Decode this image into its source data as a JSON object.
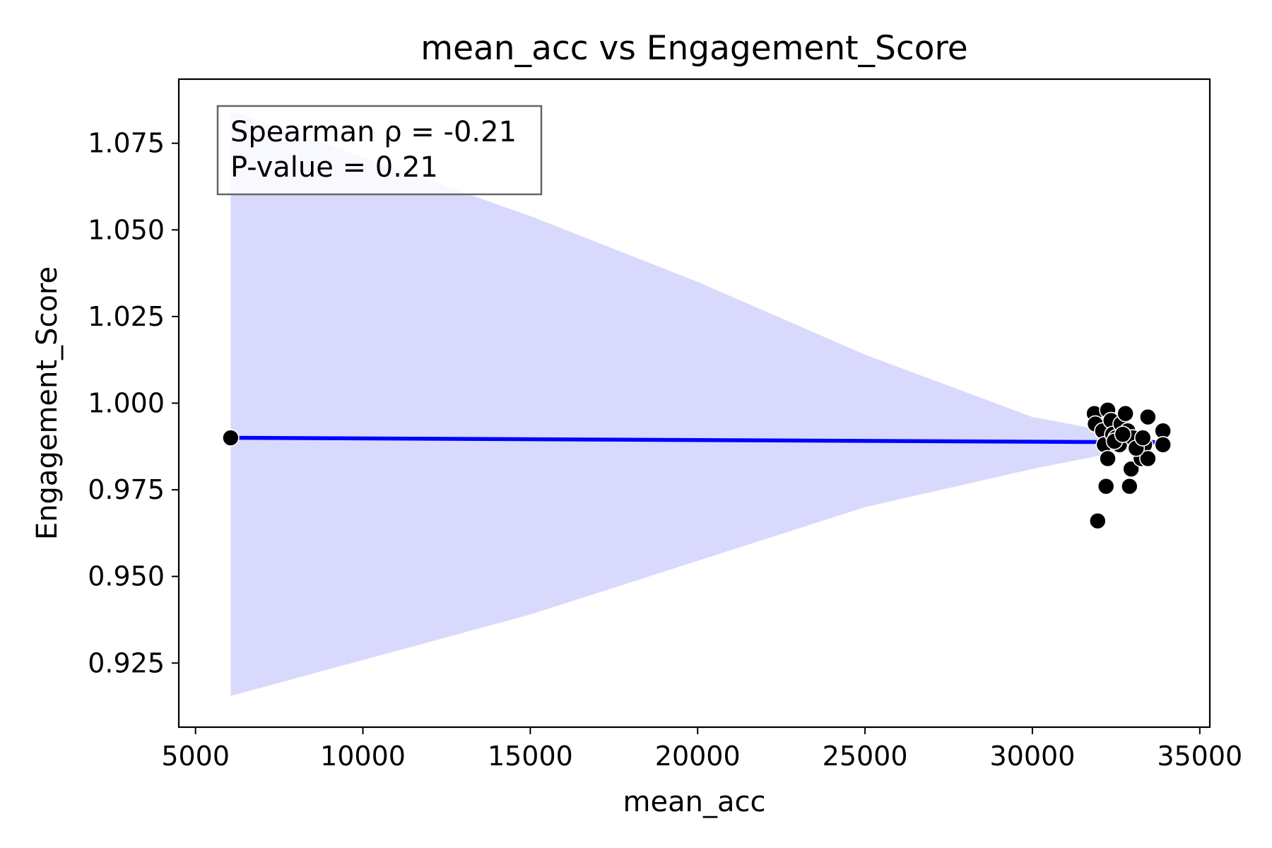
{
  "chart_data": {
    "type": "scatter",
    "title": "mean_acc vs Engagement_Score",
    "xlabel": "mean_acc",
    "ylabel": "Engagement_Score",
    "xlim": [
      4500,
      35300
    ],
    "ylim": [
      0.9065,
      1.0935
    ],
    "xticks": [
      5000,
      10000,
      15000,
      20000,
      25000,
      30000,
      35000
    ],
    "xtick_labels": [
      "5000",
      "10000",
      "15000",
      "20000",
      "25000",
      "30000",
      "35000"
    ],
    "yticks": [
      0.925,
      0.95,
      0.975,
      1.0,
      1.025,
      1.05,
      1.075
    ],
    "ytick_labels": [
      "0.925",
      "0.950",
      "0.975",
      "1.000",
      "1.025",
      "1.050",
      "1.075"
    ],
    "grid": false,
    "annotation": {
      "lines": [
        "Spearman ρ = -0.21",
        "P-value = 0.21"
      ],
      "placement": "top-left"
    },
    "points": [
      {
        "x": 6050,
        "y": 0.99
      },
      {
        "x": 31850,
        "y": 0.997
      },
      {
        "x": 31880,
        "y": 0.994
      },
      {
        "x": 32100,
        "y": 0.992
      },
      {
        "x": 32250,
        "y": 0.998
      },
      {
        "x": 32350,
        "y": 0.995
      },
      {
        "x": 32150,
        "y": 0.988
      },
      {
        "x": 32250,
        "y": 0.984
      },
      {
        "x": 32400,
        "y": 0.991
      },
      {
        "x": 32500,
        "y": 0.99
      },
      {
        "x": 32600,
        "y": 0.988
      },
      {
        "x": 32650,
        "y": 0.994
      },
      {
        "x": 32780,
        "y": 0.997
      },
      {
        "x": 32850,
        "y": 0.992
      },
      {
        "x": 33000,
        "y": 0.99
      },
      {
        "x": 32950,
        "y": 0.981
      },
      {
        "x": 33200,
        "y": 0.986
      },
      {
        "x": 33250,
        "y": 0.984
      },
      {
        "x": 33350,
        "y": 0.988
      },
      {
        "x": 33450,
        "y": 0.984
      },
      {
        "x": 33450,
        "y": 0.996
      },
      {
        "x": 33900,
        "y": 0.992
      },
      {
        "x": 33900,
        "y": 0.988
      },
      {
        "x": 32200,
        "y": 0.976
      },
      {
        "x": 32900,
        "y": 0.976
      },
      {
        "x": 31950,
        "y": 0.966
      },
      {
        "x": 32450,
        "y": 0.989
      },
      {
        "x": 33100,
        "y": 0.987
      },
      {
        "x": 32700,
        "y": 0.991
      },
      {
        "x": 33300,
        "y": 0.99
      }
    ],
    "regression": {
      "color": "#0000ff",
      "line": [
        {
          "x": 6050,
          "y": 0.99
        },
        {
          "x": 33900,
          "y": 0.9887
        }
      ],
      "band_color": "#d9d9fd",
      "band": [
        {
          "x": 6050,
          "lower": 0.9155,
          "upper": 1.0845
        },
        {
          "x": 15000,
          "lower": 0.939,
          "upper": 1.054
        },
        {
          "x": 20000,
          "lower": 0.9545,
          "upper": 1.035
        },
        {
          "x": 25000,
          "lower": 0.97,
          "upper": 1.014
        },
        {
          "x": 30000,
          "lower": 0.981,
          "upper": 0.996
        },
        {
          "x": 33900,
          "lower": 0.9885,
          "upper": 0.989
        }
      ]
    },
    "point_color": "#000000"
  }
}
